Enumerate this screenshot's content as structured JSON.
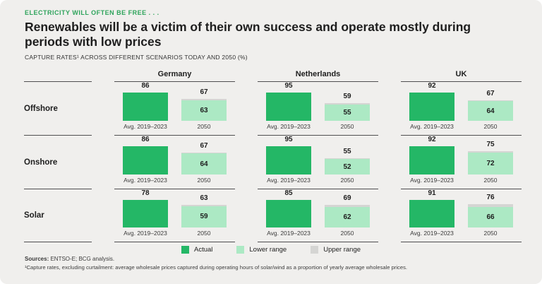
{
  "header": {
    "kicker": "ELECTRICITY WILL OFTEN BE FREE . . .",
    "title": "Renewables will be a victim of their own success and operate mostly during periods with low prices",
    "subtitle": "CAPTURE RATES¹ ACROSS DIFFERENT SCENARIOS TODAY AND 2050 (%)"
  },
  "chart_data": {
    "type": "bar",
    "title": "Renewables will be a victim of their own success and operate mostly during periods with low prices",
    "subtitle": "CAPTURE RATES¹ ACROSS DIFFERENT SCENARIOS TODAY AND 2050 (%)",
    "unit": "%",
    "row_labels": [
      "Offshore",
      "Onshore",
      "Solar"
    ],
    "bar_labels": {
      "actual": "Avg. 2019–2023",
      "future": "2050"
    },
    "countries": [
      {
        "name": "Germany",
        "rows": [
          {
            "technology": "Offshore",
            "actual": 86,
            "upper": 67,
            "lower": 63
          },
          {
            "technology": "Onshore",
            "actual": 86,
            "upper": 67,
            "lower": 64
          },
          {
            "technology": "Solar",
            "actual": 78,
            "upper": 63,
            "lower": 59
          }
        ]
      },
      {
        "name": "Netherlands",
        "rows": [
          {
            "technology": "Offshore",
            "actual": 95,
            "upper": 59,
            "lower": 55
          },
          {
            "technology": "Onshore",
            "actual": 95,
            "upper": 55,
            "lower": 52
          },
          {
            "technology": "Solar",
            "actual": 85,
            "upper": 69,
            "lower": 62
          }
        ]
      },
      {
        "name": "UK",
        "rows": [
          {
            "technology": "Offshore",
            "actual": 92,
            "upper": 67,
            "lower": 64
          },
          {
            "technology": "Onshore",
            "actual": 92,
            "upper": 75,
            "lower": 72
          },
          {
            "technology": "Solar",
            "actual": 91,
            "upper": 76,
            "lower": 66
          }
        ]
      }
    ],
    "legend": [
      {
        "label": "Actual"
      },
      {
        "label": "Lower range"
      },
      {
        "label": "Upper range"
      }
    ],
    "colors": {
      "actual": "#24b766",
      "lower": "#ace9c4",
      "upper": "#d5d5d3",
      "kicker": "#2fa45c",
      "background": "#f0efed",
      "line": "#4f4f51"
    }
  },
  "footer": {
    "sources_label": "Sources:",
    "sources_text": " ENTSO-E; BCG analysis.",
    "footnote": "¹Capture rates, excluding curtailment: average wholesale prices captured during operating hours of solar/wind as a proportion of yearly average wholesale prices."
  }
}
